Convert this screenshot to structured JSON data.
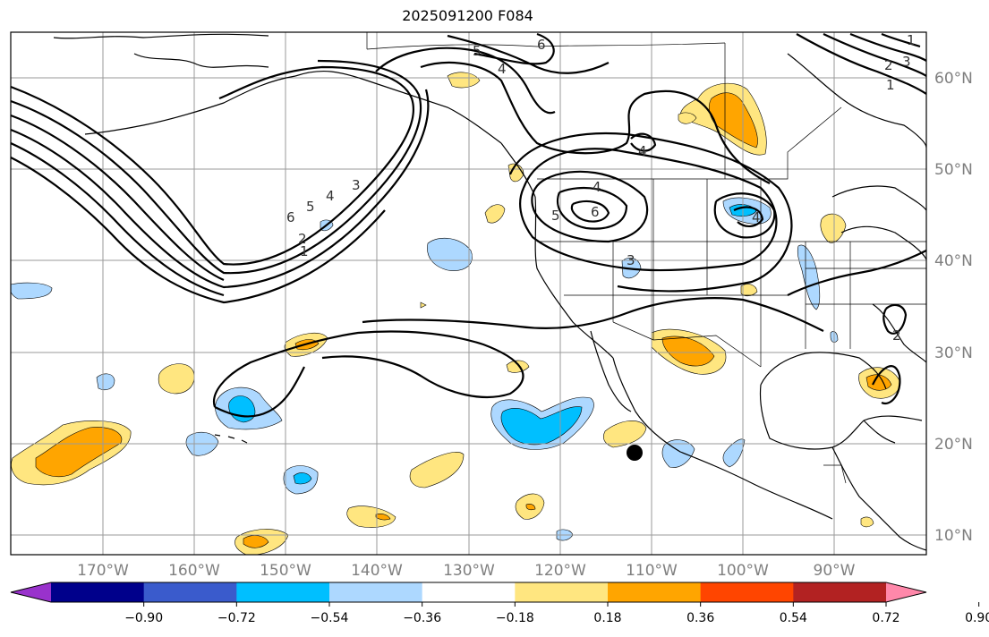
{
  "title": "2025091200 F084",
  "map": {
    "lon_labels": [
      "170°W",
      "160°W",
      "150°W",
      "140°W",
      "130°W",
      "120°W",
      "110°W",
      "100°W",
      "90°W"
    ],
    "lat_labels": [
      "60°N",
      "50°N",
      "40°N",
      "30°N",
      "20°N",
      "10°N"
    ],
    "contour_labels": [
      "6",
      "5",
      "4",
      "3",
      "2",
      "1",
      "6",
      "5",
      "4",
      "4",
      "6",
      "5",
      "4",
      "3",
      "4",
      "1",
      "2",
      "3",
      "1",
      "2"
    ],
    "marker": "storm-position-dot"
  },
  "colorbar": {
    "tick_labels": [
      "−0.90",
      "−0.72",
      "−0.54",
      "−0.36",
      "−0.18",
      "0.18",
      "0.36",
      "0.54",
      "0.72",
      "0.90"
    ],
    "colors": [
      "#9932cc",
      "#00008b",
      "#3a5bcc",
      "#00bfff",
      "#add8ff",
      "#ffffff",
      "#ffe680",
      "#ffa500",
      "#ff4500",
      "#b22222",
      "#ff88aa"
    ]
  },
  "colors": {
    "pos_low": "#ffe680",
    "pos_mid": "#ffa500",
    "neg_low": "#add8ff",
    "neg_mid": "#00bfff",
    "grid": "#9a9a9a",
    "coast": "#000000"
  }
}
